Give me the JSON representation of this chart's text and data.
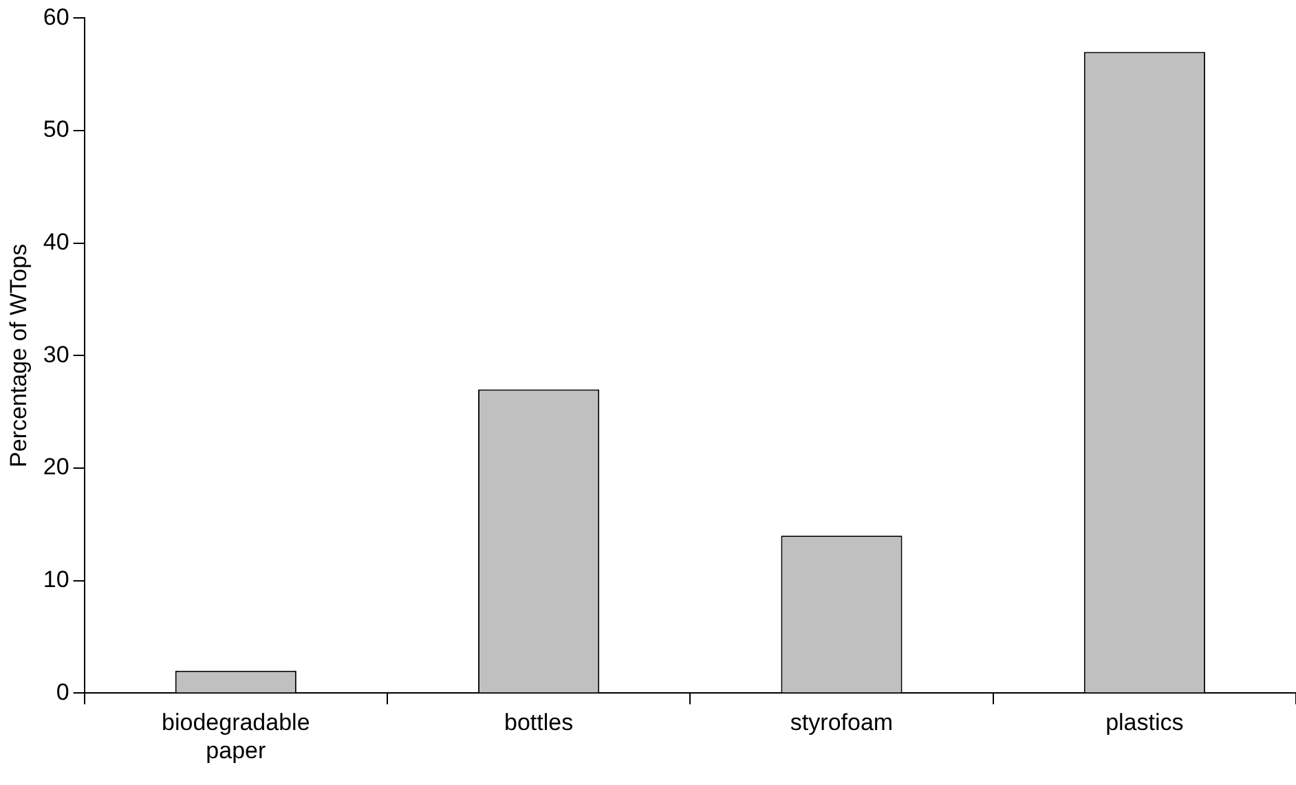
{
  "chart_data": {
    "type": "bar",
    "ylabel": "Percentage of WTops",
    "categories": [
      "biodegradable paper",
      "bottles",
      "styrofoam",
      "plastics"
    ],
    "values": [
      2,
      27,
      14,
      57
    ],
    "color": "#c0c0c0",
    "ylim": [
      0,
      60
    ],
    "yticks": [
      0,
      10,
      20,
      30,
      40,
      50,
      60
    ],
    "grid": false,
    "legend": false
  }
}
